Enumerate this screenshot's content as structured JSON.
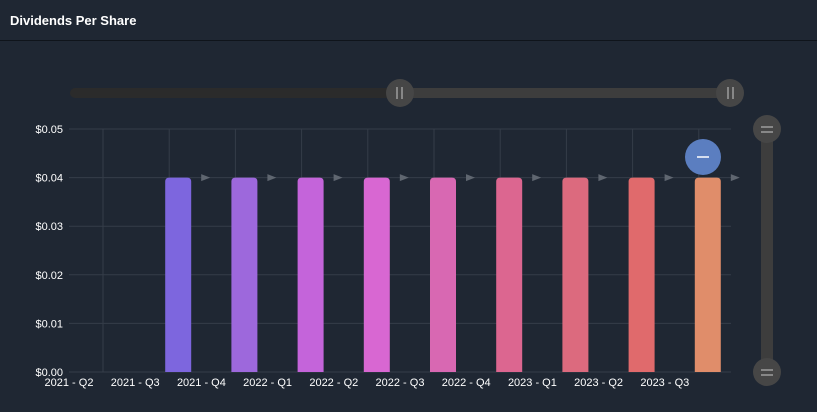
{
  "header": {
    "title": "Dividends Per Share"
  },
  "chart_data": {
    "type": "bar",
    "title": "Dividends Per Share",
    "categories": [
      "2021 - Q2",
      "2021 - Q3",
      "2021 - Q4",
      "2022 - Q1",
      "2022 - Q2",
      "2022 - Q3",
      "2022 - Q4",
      "2023 - Q1",
      "2023 - Q2",
      "2023 - Q3"
    ],
    "series": [
      {
        "values": [
          null,
          0.04,
          0.04,
          0.04,
          0.04,
          0.04,
          0.04,
          0.04,
          0.04,
          0.04
        ]
      }
    ],
    "bar_colors": [
      "#6a73e0",
      "#7d66de",
      "#9d68dc",
      "#c464da",
      "#d867d2",
      "#d868b2",
      "#dc6690",
      "#dc6a7e",
      "#e06a6c",
      "#e08d6a"
    ],
    "y_ticks": [
      "$0.00",
      "$0.01",
      "$0.02",
      "$0.03",
      "$0.04",
      "$0.05"
    ],
    "ylim": [
      0,
      0.05
    ],
    "grid": true,
    "legend": "none",
    "xlabel": "",
    "ylabel": ""
  },
  "colors": {
    "background": "#1f2733",
    "grid": "#353d49",
    "slider_track": "#3a3a3a",
    "slider_handle": "#464646",
    "reset_button": "#5b7ec0"
  },
  "icons": {
    "range_handle": "grip-icon",
    "reset": "minus-icon",
    "bar_marker": "triangle-right-icon"
  }
}
